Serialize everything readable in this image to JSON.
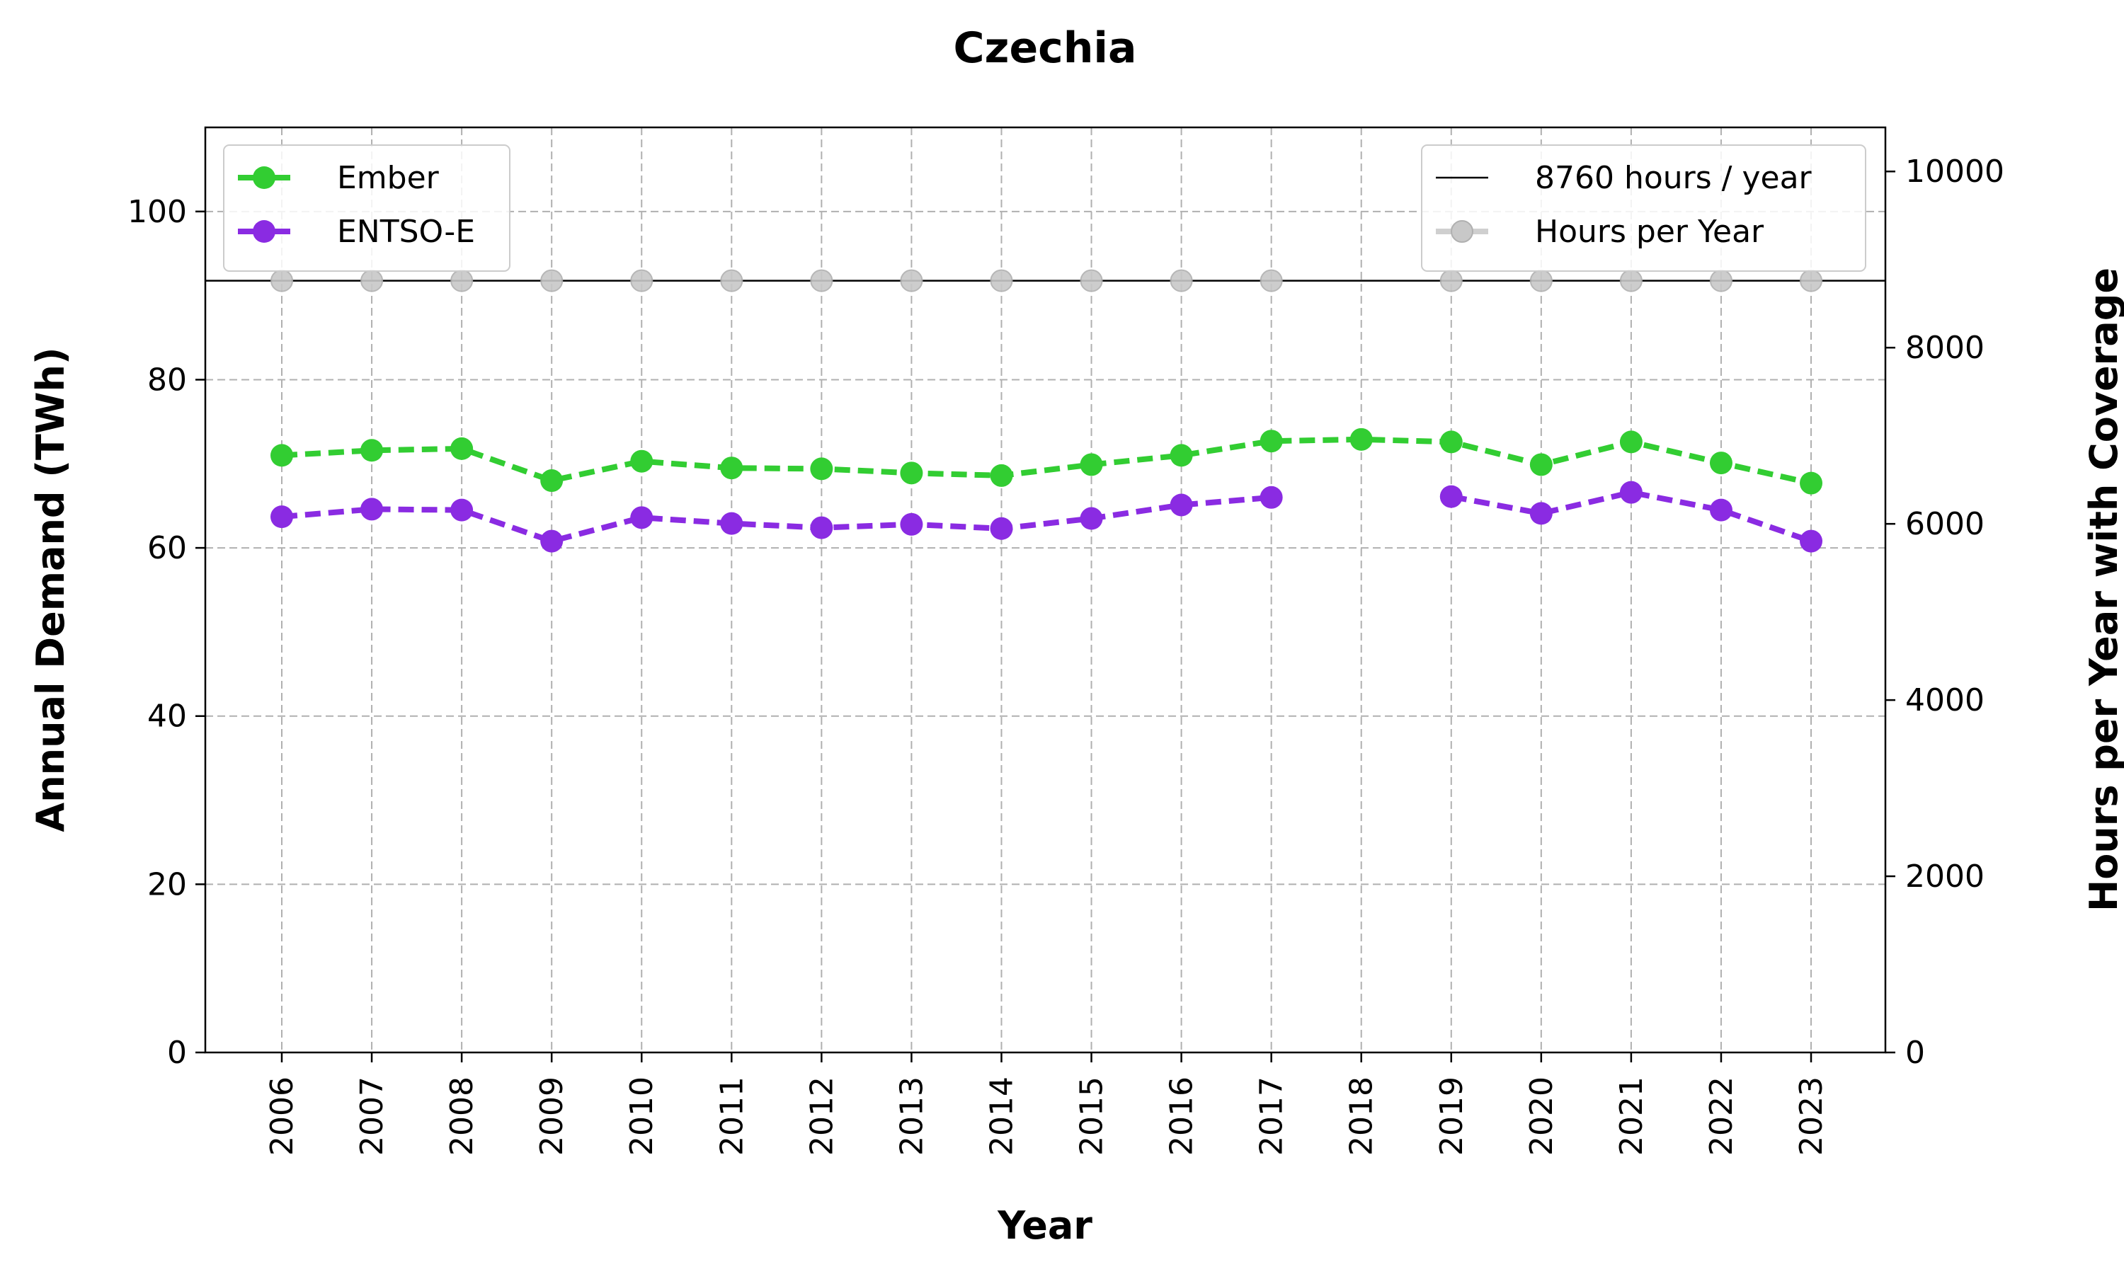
{
  "chart_data": {
    "type": "line",
    "title": "Czechia",
    "xlabel": "Year",
    "ylabel": "Annual Demand (TWh)",
    "y2label": "Hours per Year with Coverage",
    "categories": [
      "2006",
      "2007",
      "2008",
      "2009",
      "2010",
      "2011",
      "2012",
      "2013",
      "2014",
      "2015",
      "2016",
      "2017",
      "2018",
      "2019",
      "2020",
      "2021",
      "2022",
      "2023"
    ],
    "ylim": [
      0,
      110
    ],
    "y2lim": [
      0,
      10500
    ],
    "yticks": [
      "0",
      "20",
      "40",
      "60",
      "80",
      "100"
    ],
    "y2ticks": [
      "0",
      "2000",
      "4000",
      "6000",
      "8000",
      "10000"
    ],
    "grid": true,
    "series": [
      {
        "name": "Ember",
        "axis": "left",
        "color": "#32cd32",
        "style": "dashed",
        "marker": "circle",
        "values": [
          71.0,
          71.6,
          71.8,
          68.0,
          70.3,
          69.5,
          69.4,
          68.9,
          68.6,
          69.9,
          71.0,
          72.7,
          72.9,
          72.6,
          69.9,
          72.6,
          70.1,
          67.7
        ]
      },
      {
        "name": "ENTSO-E",
        "axis": "left",
        "color": "#8a2be2",
        "style": "dashed",
        "marker": "circle",
        "values": [
          63.7,
          64.6,
          64.5,
          60.8,
          63.6,
          62.9,
          62.4,
          62.8,
          62.3,
          63.5,
          65.1,
          66.0,
          null,
          66.1,
          64.1,
          66.6,
          64.5,
          60.8
        ]
      },
      {
        "name": "Hours per Year",
        "axis": "right",
        "color": "#bdbdbd",
        "style": "solid",
        "marker": "circle",
        "values": [
          8760,
          8760,
          8760,
          8760,
          8760,
          8760,
          8760,
          8760,
          8760,
          8760,
          8760,
          8760,
          null,
          8760,
          8760,
          8760,
          8760,
          8760
        ]
      }
    ],
    "reference_line": {
      "name": "8760 hours / year",
      "axis": "right",
      "value": 8760,
      "color": "#000000"
    },
    "legend_left": [
      "Ember",
      "ENTSO-E"
    ],
    "legend_right": [
      "8760 hours / year",
      "Hours per Year"
    ],
    "legend_placement": {
      "left": "top-left",
      "right": "top-right"
    }
  }
}
